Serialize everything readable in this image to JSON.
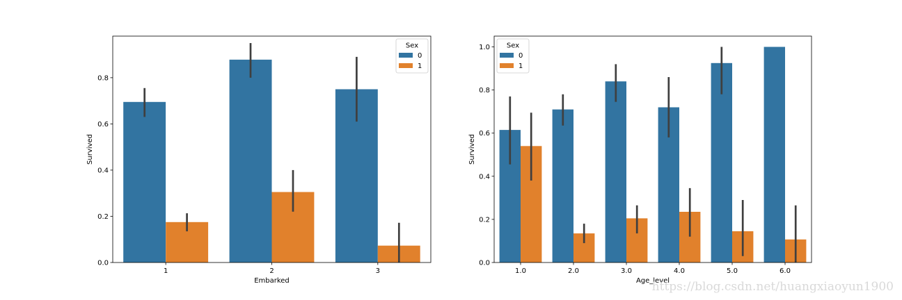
{
  "colors": {
    "series_0": "#3274a1",
    "series_1": "#e1812c",
    "errorbar": "#3f3f3f"
  },
  "watermark": "https://blog.csdn.net/huangxiaoyun1900",
  "chart_data": [
    {
      "type": "bar",
      "xlabel": "Embarked",
      "ylabel": "Survived",
      "categories": [
        "1",
        "2",
        "3"
      ],
      "ylim": [
        0,
        0.98
      ],
      "yticks": [
        "0.0",
        "0.2",
        "0.4",
        "0.6",
        "0.8"
      ],
      "ytick_values": [
        0,
        0.2,
        0.4,
        0.6,
        0.8
      ],
      "legend": {
        "title": "Sex",
        "placement": "top-right"
      },
      "series": [
        {
          "name": "0",
          "values": [
            0.695,
            0.878,
            0.75
          ],
          "ci_low": [
            0.63,
            0.8,
            0.61
          ],
          "ci_high": [
            0.755,
            0.95,
            0.89
          ]
        },
        {
          "name": "1",
          "values": [
            0.175,
            0.305,
            0.073
          ],
          "ci_low": [
            0.135,
            0.22,
            0.0
          ],
          "ci_high": [
            0.213,
            0.4,
            0.172
          ]
        }
      ]
    },
    {
      "type": "bar",
      "xlabel": "Age_level",
      "ylabel": "Survived",
      "categories": [
        "1.0",
        "2.0",
        "3.0",
        "4.0",
        "5.0",
        "6.0"
      ],
      "ylim": [
        0,
        1.05
      ],
      "yticks": [
        "0.0",
        "0.2",
        "0.4",
        "0.6",
        "0.8",
        "1.0"
      ],
      "ytick_values": [
        0,
        0.2,
        0.4,
        0.6,
        0.8,
        1.0
      ],
      "legend": {
        "title": "Sex",
        "placement": "top-left"
      },
      "series": [
        {
          "name": "0",
          "values": [
            0.615,
            0.71,
            0.84,
            0.72,
            0.925,
            1.0
          ],
          "ci_low": [
            0.455,
            0.635,
            0.745,
            0.58,
            0.78,
            1.0
          ],
          "ci_high": [
            0.77,
            0.78,
            0.92,
            0.86,
            1.0,
            1.0
          ]
        },
        {
          "name": "1",
          "values": [
            0.54,
            0.135,
            0.205,
            0.235,
            0.145,
            0.107
          ],
          "ci_low": [
            0.38,
            0.09,
            0.135,
            0.12,
            0.03,
            0.0
          ],
          "ci_high": [
            0.695,
            0.18,
            0.265,
            0.345,
            0.29,
            0.265
          ]
        }
      ]
    }
  ]
}
